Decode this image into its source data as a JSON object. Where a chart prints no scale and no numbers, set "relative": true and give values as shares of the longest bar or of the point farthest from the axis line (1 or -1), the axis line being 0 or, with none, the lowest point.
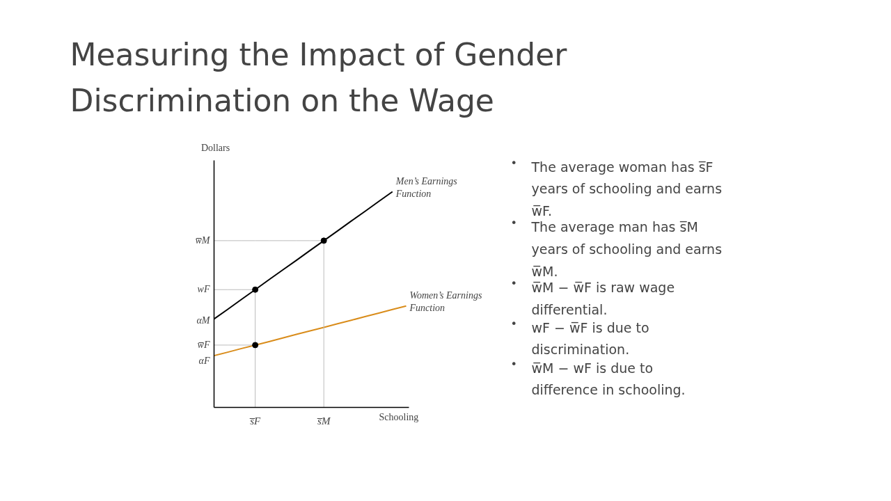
{
  "chart_data": {
    "type": "line",
    "relative": true,
    "title": "Measuring the Impact of Gender Discrimination on the Wage",
    "xlabel": "Schooling",
    "ylabel": "Dollars",
    "categories": [
      null,
      null,
      null,
      "s̅F",
      null,
      null,
      null,
      null,
      "s̅M",
      null,
      null,
      null,
      null,
      null,
      null
    ],
    "series": [
      {
        "name": "Men’s Earnings Function",
        "color": "#000000",
        "values": [
          0.41,
          0.455,
          0.501,
          0.546,
          0.592,
          0.637,
          0.682,
          0.728,
          0.773,
          0.818,
          0.864,
          0.909,
          0.955,
          1.0,
          null
        ]
      },
      {
        "name": "Women’s Earnings Function",
        "color": "#d98c1a",
        "values": [
          0.24,
          0.256,
          0.273,
          0.289,
          0.305,
          0.322,
          0.339,
          0.355,
          0.371,
          0.388,
          0.404,
          0.421,
          0.437,
          0.454,
          0.47
        ]
      },
      {
        "color": "#bbbbbb",
        "values": [
          0.773,
          0.773,
          0.773,
          0.773,
          0.773,
          0.773,
          0.773,
          0.773,
          0.773,
          null,
          null,
          null,
          null,
          null,
          null
        ]
      },
      {
        "color": "#bbbbbb",
        "values": [
          0.546,
          0.546,
          0.546,
          0.546,
          null,
          null,
          null,
          null,
          null,
          null,
          null,
          null,
          null,
          null,
          null
        ]
      },
      {
        "color": "#bbbbbb",
        "values": [
          0.289,
          0.289,
          0.289,
          0.289,
          null,
          null,
          null,
          null,
          null,
          null,
          null,
          null,
          null,
          null,
          null
        ]
      },
      {
        "type": "lollipop",
        "color": "#000000",
        "marker": "circle",
        "values": [
          null,
          null,
          null,
          0.546,
          null,
          null,
          null,
          null,
          0.773,
          null,
          null,
          null,
          null,
          null,
          null
        ]
      },
      {
        "type": "scatter",
        "color": "#000000",
        "marker": "circle",
        "values": [
          null,
          null,
          null,
          0.289,
          null,
          null,
          null,
          null,
          null,
          null,
          null,
          null,
          null,
          null,
          null
        ]
      }
    ],
    "annotations": [
      "w̅M",
      "wF",
      "αM",
      "w̅F",
      "αF",
      "• The average woman has s̅F years of schooling and earns w̅F.",
      "• The average man has s̅M years of schooling and earns w̅M.",
      "• w̅M − w̅F is raw wage differential.",
      "• wF − w̅F is due to discrimination.",
      "• w̅M − wF is due to difference in schooling."
    ],
    "grid": false
  }
}
